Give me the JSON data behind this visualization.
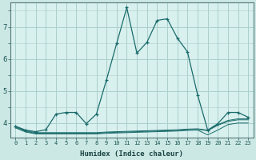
{
  "background_color": "#cce8e4",
  "plot_bg_color": "#d8f0ee",
  "grid_color": "#aacfcc",
  "line_color": "#1a6b6b",
  "xlabel": "Humidex (Indice chaleur)",
  "x_ticks": [
    0,
    1,
    2,
    3,
    4,
    5,
    6,
    7,
    8,
    9,
    10,
    11,
    12,
    13,
    14,
    15,
    16,
    17,
    18,
    19,
    20,
    21,
    22,
    23
  ],
  "ylim": [
    3.55,
    7.75
  ],
  "yticks": [
    4,
    5,
    6,
    7
  ],
  "main_series": [
    [
      0,
      3.9
    ],
    [
      1,
      3.78
    ],
    [
      2,
      3.73
    ],
    [
      3,
      3.79
    ],
    [
      4,
      4.28
    ],
    [
      5,
      4.33
    ],
    [
      6,
      4.33
    ],
    [
      7,
      3.98
    ],
    [
      8,
      4.28
    ],
    [
      9,
      5.35
    ],
    [
      10,
      6.48
    ],
    [
      11,
      7.6
    ],
    [
      12,
      6.18
    ],
    [
      13,
      6.52
    ],
    [
      14,
      7.2
    ],
    [
      15,
      7.25
    ],
    [
      16,
      6.65
    ],
    [
      17,
      6.22
    ],
    [
      18,
      4.88
    ],
    [
      19,
      3.78
    ],
    [
      20,
      3.98
    ],
    [
      21,
      4.33
    ],
    [
      22,
      4.33
    ],
    [
      23,
      4.18
    ]
  ],
  "flat_series_1": [
    [
      0,
      3.9
    ],
    [
      1,
      3.76
    ],
    [
      2,
      3.7
    ],
    [
      3,
      3.7
    ],
    [
      4,
      3.7
    ],
    [
      5,
      3.7
    ],
    [
      6,
      3.7
    ],
    [
      7,
      3.7
    ],
    [
      8,
      3.7
    ],
    [
      9,
      3.72
    ],
    [
      10,
      3.73
    ],
    [
      11,
      3.74
    ],
    [
      12,
      3.75
    ],
    [
      13,
      3.76
    ],
    [
      14,
      3.77
    ],
    [
      15,
      3.78
    ],
    [
      16,
      3.79
    ],
    [
      17,
      3.81
    ],
    [
      18,
      3.82
    ],
    [
      19,
      3.78
    ],
    [
      20,
      3.95
    ],
    [
      21,
      4.08
    ],
    [
      22,
      4.13
    ],
    [
      23,
      4.13
    ]
  ],
  "flat_series_2": [
    [
      0,
      3.87
    ],
    [
      1,
      3.74
    ],
    [
      2,
      3.68
    ],
    [
      3,
      3.68
    ],
    [
      4,
      3.68
    ],
    [
      5,
      3.68
    ],
    [
      6,
      3.68
    ],
    [
      7,
      3.68
    ],
    [
      8,
      3.68
    ],
    [
      9,
      3.7
    ],
    [
      10,
      3.71
    ],
    [
      11,
      3.72
    ],
    [
      12,
      3.73
    ],
    [
      13,
      3.74
    ],
    [
      14,
      3.75
    ],
    [
      15,
      3.76
    ],
    [
      16,
      3.77
    ],
    [
      17,
      3.79
    ],
    [
      18,
      3.8
    ],
    [
      19,
      3.76
    ],
    [
      20,
      3.93
    ],
    [
      21,
      4.05
    ],
    [
      22,
      4.1
    ],
    [
      23,
      4.1
    ]
  ],
  "flat_series_3": [
    [
      0,
      3.85
    ],
    [
      1,
      3.72
    ],
    [
      2,
      3.66
    ],
    [
      3,
      3.66
    ],
    [
      4,
      3.66
    ],
    [
      5,
      3.66
    ],
    [
      6,
      3.66
    ],
    [
      7,
      3.66
    ],
    [
      8,
      3.66
    ],
    [
      9,
      3.68
    ],
    [
      10,
      3.69
    ],
    [
      11,
      3.7
    ],
    [
      12,
      3.71
    ],
    [
      13,
      3.72
    ],
    [
      14,
      3.73
    ],
    [
      15,
      3.74
    ],
    [
      16,
      3.75
    ],
    [
      17,
      3.77
    ],
    [
      18,
      3.78
    ],
    [
      19,
      3.63
    ],
    [
      20,
      3.78
    ],
    [
      21,
      3.95
    ],
    [
      22,
      4.0
    ],
    [
      23,
      4.0
    ]
  ]
}
